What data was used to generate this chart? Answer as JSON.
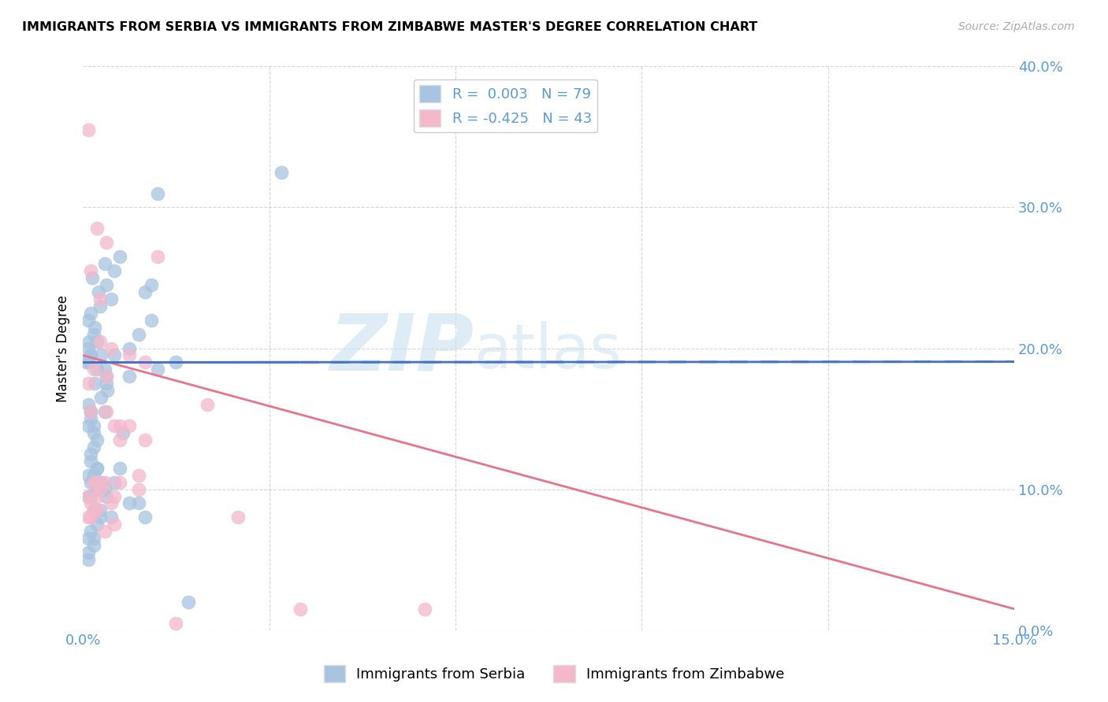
{
  "title": "IMMIGRANTS FROM SERBIA VS IMMIGRANTS FROM ZIMBABWE MASTER'S DEGREE CORRELATION CHART",
  "source": "Source: ZipAtlas.com",
  "ylabel": "Master's Degree",
  "ytick_labels": [
    "0.0%",
    "10.0%",
    "20.0%",
    "30.0%",
    "40.0%"
  ],
  "ytick_values": [
    0.0,
    10.0,
    20.0,
    30.0,
    40.0
  ],
  "xlim": [
    0.0,
    15.0
  ],
  "ylim": [
    0.0,
    40.0
  ],
  "legend_R_serbia": "R =  0.003",
  "legend_N_serbia": "N = 79",
  "legend_R_zimbabwe": "R = -0.425",
  "legend_N_zimbabwe": "N = 43",
  "color_serbia": "#a8c4e0",
  "color_zimbabwe": "#f4b8cb",
  "color_serbia_line": "#4472c4",
  "color_zimbabwe_line": "#e8748a",
  "color_axis_labels": "#5b9bd5",
  "watermark_zip": "ZIP",
  "watermark_atlas": "atlas",
  "serbia_x": [
    0.15,
    0.35,
    0.25,
    1.2,
    0.1,
    3.2,
    0.08,
    0.18,
    0.28,
    0.38,
    0.5,
    0.6,
    0.45,
    0.12,
    0.22,
    0.09,
    0.19,
    0.29,
    0.39,
    0.75,
    1.0,
    0.9,
    1.1,
    0.12,
    0.19,
    0.22,
    0.29,
    0.35,
    0.09,
    0.05,
    0.12,
    0.18,
    0.38,
    0.5,
    0.65,
    0.29,
    0.22,
    0.12,
    0.35,
    0.09,
    0.18,
    0.12,
    0.22,
    0.75,
    1.0,
    0.09,
    0.12,
    0.18,
    0.28,
    0.38,
    0.5,
    0.6,
    0.22,
    0.12,
    0.09,
    0.18,
    0.9,
    0.28,
    0.35,
    0.45,
    1.2,
    1.5,
    0.09,
    0.12,
    0.18,
    0.22,
    0.09,
    0.12,
    0.18,
    0.22,
    1.1,
    0.75,
    0.38,
    0.12,
    0.09,
    0.18,
    1.7,
    0.09,
    0.12
  ],
  "serbia_y": [
    25.0,
    26.0,
    24.0,
    31.0,
    20.5,
    32.5,
    22.0,
    21.0,
    23.0,
    24.5,
    25.5,
    26.5,
    23.5,
    19.5,
    18.5,
    19.0,
    17.5,
    16.5,
    17.0,
    18.0,
    24.0,
    21.0,
    24.5,
    22.5,
    21.5,
    20.5,
    19.5,
    18.5,
    20.0,
    19.0,
    15.0,
    14.5,
    18.0,
    19.5,
    14.0,
    10.5,
    10.0,
    9.5,
    15.5,
    14.5,
    13.0,
    12.0,
    11.5,
    9.0,
    8.0,
    11.0,
    12.5,
    8.5,
    8.0,
    9.5,
    10.5,
    11.5,
    7.5,
    7.0,
    6.5,
    6.0,
    9.0,
    8.5,
    10.0,
    8.0,
    18.5,
    19.0,
    9.5,
    10.5,
    11.0,
    11.5,
    16.0,
    15.5,
    14.0,
    13.5,
    22.0,
    20.0,
    17.5,
    15.5,
    5.0,
    6.5,
    2.0,
    5.5,
    19.5
  ],
  "zimbabwe_x": [
    0.09,
    0.22,
    0.38,
    0.75,
    1.0,
    0.12,
    0.28,
    0.45,
    0.6,
    0.9,
    0.18,
    0.35,
    0.5,
    0.12,
    0.22,
    0.09,
    0.18,
    1.2,
    0.28,
    0.38,
    0.5,
    2.0,
    0.12,
    0.22,
    0.38,
    0.6,
    0.75,
    0.09,
    0.18,
    0.28,
    0.45,
    0.9,
    0.12,
    0.22,
    0.35,
    0.5,
    0.6,
    1.0,
    1.5,
    3.5,
    5.5,
    0.09,
    2.5
  ],
  "zimbabwe_y": [
    35.5,
    28.5,
    27.5,
    19.5,
    19.0,
    25.5,
    23.5,
    20.0,
    10.5,
    10.0,
    10.5,
    10.5,
    14.5,
    9.0,
    9.5,
    9.5,
    8.5,
    26.5,
    20.5,
    15.5,
    9.5,
    16.0,
    15.5,
    10.5,
    18.0,
    13.5,
    14.5,
    17.5,
    18.5,
    10.0,
    9.0,
    11.0,
    8.0,
    8.5,
    7.0,
    7.5,
    14.5,
    13.5,
    0.5,
    1.5,
    1.5,
    8.0,
    8.0
  ]
}
